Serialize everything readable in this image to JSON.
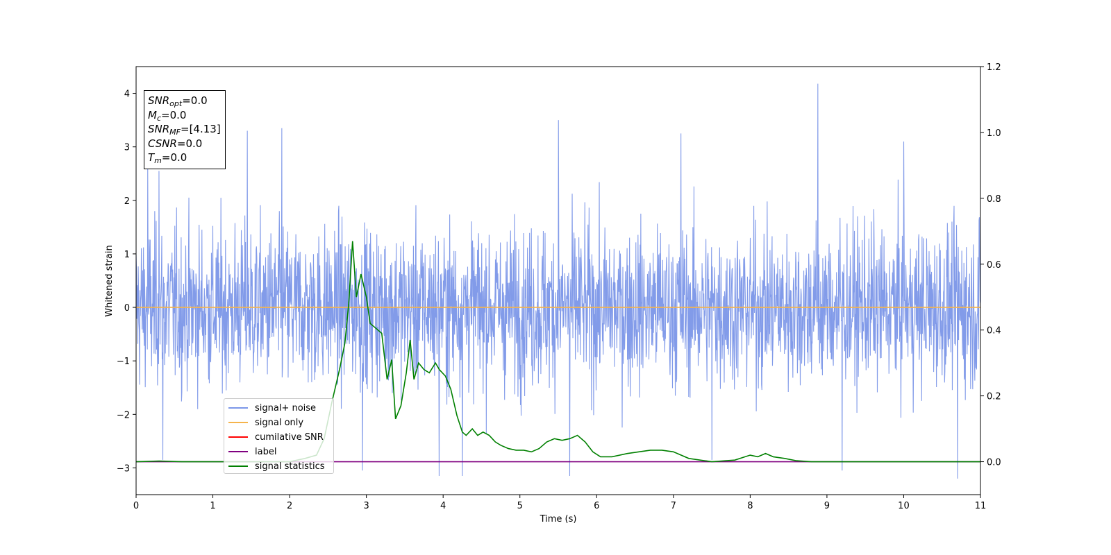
{
  "chart_data": {
    "type": "line",
    "title": "",
    "xlabel": "Time (s)",
    "ylabel": "Whitened strain",
    "xlim": [
      0,
      11
    ],
    "ylim": [
      -3.5,
      4.5
    ],
    "y2lim": [
      -0.1,
      1.2
    ],
    "x_ticks": [
      "0",
      "1",
      "2",
      "3",
      "4",
      "5",
      "6",
      "7",
      "8",
      "9",
      "10",
      "11"
    ],
    "y_ticks": [
      "4",
      "3",
      "2",
      "1",
      "0",
      "−1",
      "−2",
      "−3"
    ],
    "y2_ticks": [
      "1.2",
      "1.0",
      "0.8",
      "0.6",
      "0.4",
      "0.2",
      "0.0"
    ],
    "grid": false,
    "legend_position": "lower-left",
    "annotation": {
      "snr_opt": "0.0",
      "mc": "0.0",
      "snr_mf": "[4.13]",
      "csnr": "0.0",
      "tm": "0.0"
    },
    "series": [
      {
        "name": "signal+ noise",
        "color": "#7b96e8",
        "axis": "left",
        "style": "dense gaussian noise, approx std 1, y range about -3.2 to 4.2",
        "notable_peaks": [
          {
            "x": 0.15,
            "y": 2.65
          },
          {
            "x": 0.3,
            "y": 2.55
          },
          {
            "x": 1.45,
            "y": 3.3
          },
          {
            "x": 1.9,
            "y": 3.35
          },
          {
            "x": 5.5,
            "y": 3.5
          },
          {
            "x": 7.1,
            "y": 3.25
          },
          {
            "x": 8.88,
            "y": 4.18
          },
          {
            "x": 10.0,
            "y": 3.1
          }
        ],
        "notable_troughs": [
          {
            "x": 0.35,
            "y": -2.85
          },
          {
            "x": 2.95,
            "y": -3.05
          },
          {
            "x": 3.95,
            "y": -3.15
          },
          {
            "x": 4.25,
            "y": -3.15
          },
          {
            "x": 5.65,
            "y": -3.15
          },
          {
            "x": 7.5,
            "y": -2.85
          },
          {
            "x": 9.2,
            "y": -3.05
          },
          {
            "x": 10.7,
            "y": -3.2
          }
        ]
      },
      {
        "name": "signal only",
        "color": "#f5b44c",
        "axis": "left",
        "x": [
          0,
          11
        ],
        "y": [
          0,
          0
        ]
      },
      {
        "name": "cumilative SNR",
        "color": "#ff0000",
        "axis": "left",
        "x": [],
        "y": []
      },
      {
        "name": "label",
        "color": "#800080",
        "axis": "right",
        "x": [
          0,
          11
        ],
        "y": [
          0,
          0
        ]
      },
      {
        "name": "signal statistics",
        "color": "#008000",
        "axis": "right",
        "x": [
          0,
          0.3,
          0.6,
          1.0,
          1.5,
          2.0,
          2.2,
          2.35,
          2.45,
          2.55,
          2.65,
          2.72,
          2.77,
          2.82,
          2.87,
          2.93,
          3.0,
          3.05,
          3.1,
          3.2,
          3.27,
          3.33,
          3.38,
          3.45,
          3.52,
          3.57,
          3.62,
          3.68,
          3.75,
          3.82,
          3.9,
          3.95,
          4.03,
          4.1,
          4.18,
          4.25,
          4.3,
          4.38,
          4.45,
          4.52,
          4.6,
          4.68,
          4.75,
          4.85,
          4.95,
          5.05,
          5.15,
          5.25,
          5.35,
          5.45,
          5.55,
          5.65,
          5.75,
          5.85,
          5.95,
          6.05,
          6.2,
          6.4,
          6.55,
          6.7,
          6.85,
          7.0,
          7.2,
          7.5,
          7.8,
          8.0,
          8.1,
          8.2,
          8.3,
          8.45,
          8.6,
          8.8,
          9.2,
          9.6,
          10.0,
          10.5,
          11.0
        ],
        "y": [
          0.0,
          0.002,
          0.0,
          0.0,
          0.0,
          0.0,
          0.01,
          0.02,
          0.07,
          0.18,
          0.28,
          0.36,
          0.48,
          0.67,
          0.5,
          0.57,
          0.5,
          0.42,
          0.41,
          0.39,
          0.25,
          0.31,
          0.13,
          0.17,
          0.27,
          0.37,
          0.25,
          0.3,
          0.28,
          0.27,
          0.3,
          0.28,
          0.26,
          0.22,
          0.14,
          0.09,
          0.08,
          0.1,
          0.08,
          0.09,
          0.08,
          0.06,
          0.05,
          0.04,
          0.035,
          0.035,
          0.03,
          0.04,
          0.06,
          0.07,
          0.065,
          0.07,
          0.08,
          0.06,
          0.03,
          0.015,
          0.015,
          0.025,
          0.03,
          0.035,
          0.035,
          0.03,
          0.01,
          0.0,
          0.005,
          0.02,
          0.015,
          0.025,
          0.015,
          0.01,
          0.003,
          0.0,
          0.0,
          0.0,
          0.0,
          0.0,
          0.0
        ]
      }
    ]
  }
}
